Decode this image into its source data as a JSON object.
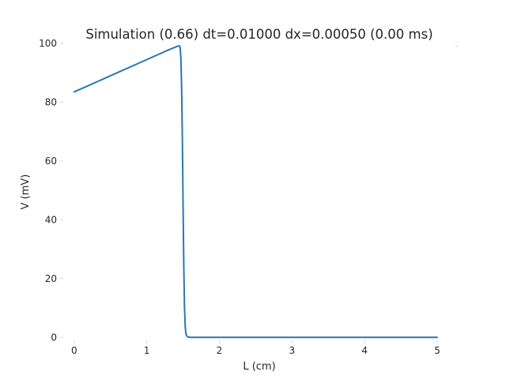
{
  "chart_data": {
    "type": "line",
    "title": "Simulation (0.66) dt=0.01000 dx=0.00050 (0.00 ms)",
    "xlabel": "L (cm)",
    "ylabel": "V (mV)",
    "xlim": [
      -0.15,
      5.25
    ],
    "ylim": [
      -1,
      100
    ],
    "xticks": [
      "0",
      "1",
      "2",
      "3",
      "4",
      "5"
    ],
    "xtick_values": [
      0,
      1,
      2,
      3,
      4,
      5
    ],
    "yticks": [
      "0",
      "20",
      "40",
      "60",
      "80",
      "100"
    ],
    "ytick_values": [
      0,
      20,
      40,
      60,
      80,
      100
    ],
    "grid": false,
    "line_color": "#2a77b4",
    "series": [
      {
        "x": [
          0.0,
          0.5,
          1.0,
          1.3,
          1.42,
          1.45,
          1.46,
          1.47,
          1.48,
          1.49,
          1.5,
          1.51,
          1.52,
          1.53,
          1.54,
          1.56,
          1.6,
          2.0,
          3.0,
          4.0,
          5.0
        ],
        "y": [
          83.5,
          89.0,
          94.5,
          97.8,
          99.0,
          99.2,
          98.5,
          95.0,
          85.0,
          68.0,
          45.0,
          24.0,
          10.0,
          3.5,
          1.0,
          0.2,
          0.0,
          0.0,
          0.0,
          0.0,
          0.0
        ]
      }
    ]
  }
}
